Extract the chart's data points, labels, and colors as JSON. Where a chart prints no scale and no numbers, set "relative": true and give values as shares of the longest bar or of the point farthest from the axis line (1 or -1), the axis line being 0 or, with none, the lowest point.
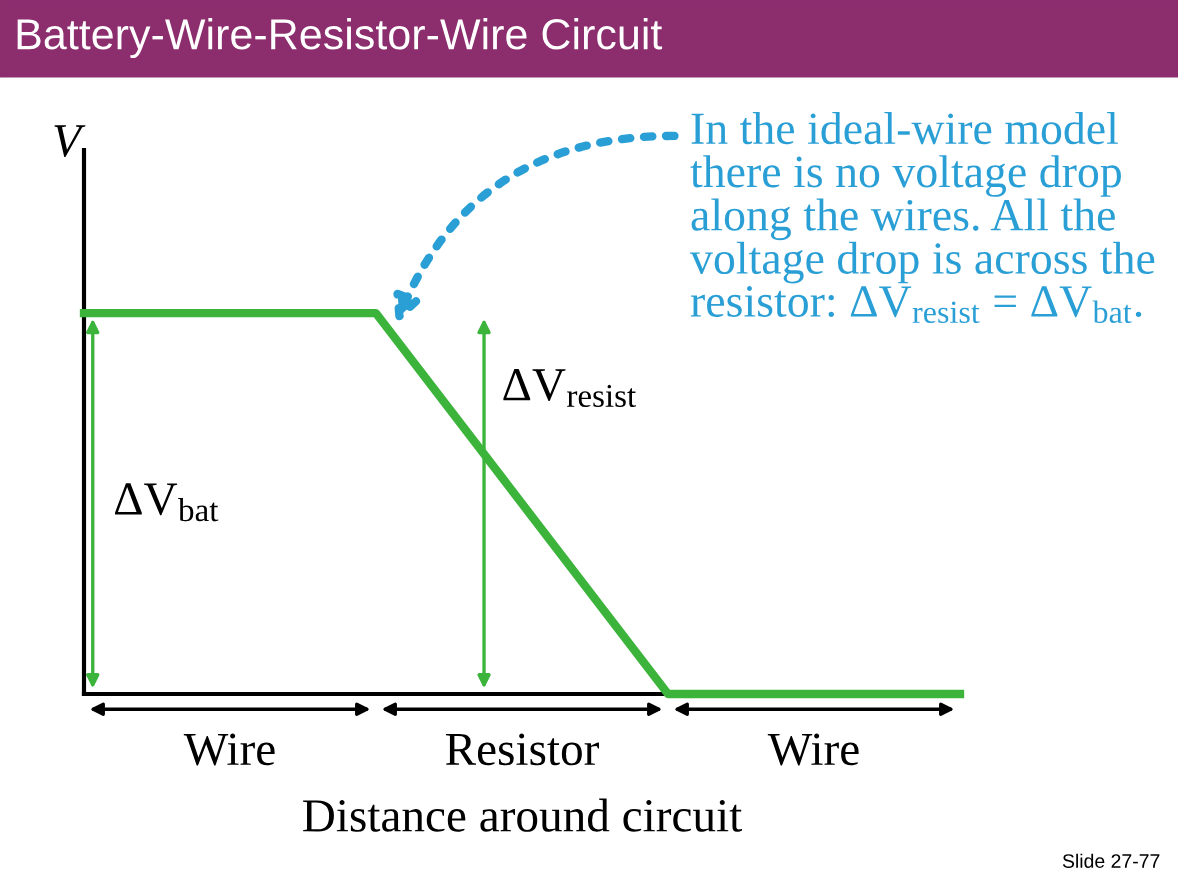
{
  "chart_data": {
    "type": "line",
    "title": "Battery-Wire-Resistor-Wire Circuit",
    "categories": [
      null,
      null,
      null,
      null
    ],
    "series": [
      {
        "color": "#3cb43c",
        "values": [
          1,
          1,
          0,
          0
        ]
      }
    ],
    "relative": true,
    "marker": "none",
    "line_style": "solid",
    "xlabel": "Distance around circuit",
    "ylabel": "V",
    "annotations": [
      "ΔV$_{bat}$",
      "ΔV$_{resist}$",
      "Wire",
      "Resistor",
      "Wire",
      "In the ideal-wire model there is no voltage drop along the wires. All the voltage drop is across the resistor: ΔV$_{resist}$ = ΔV$_{bat}$.",
      "Slide 27-77"
    ]
  }
}
